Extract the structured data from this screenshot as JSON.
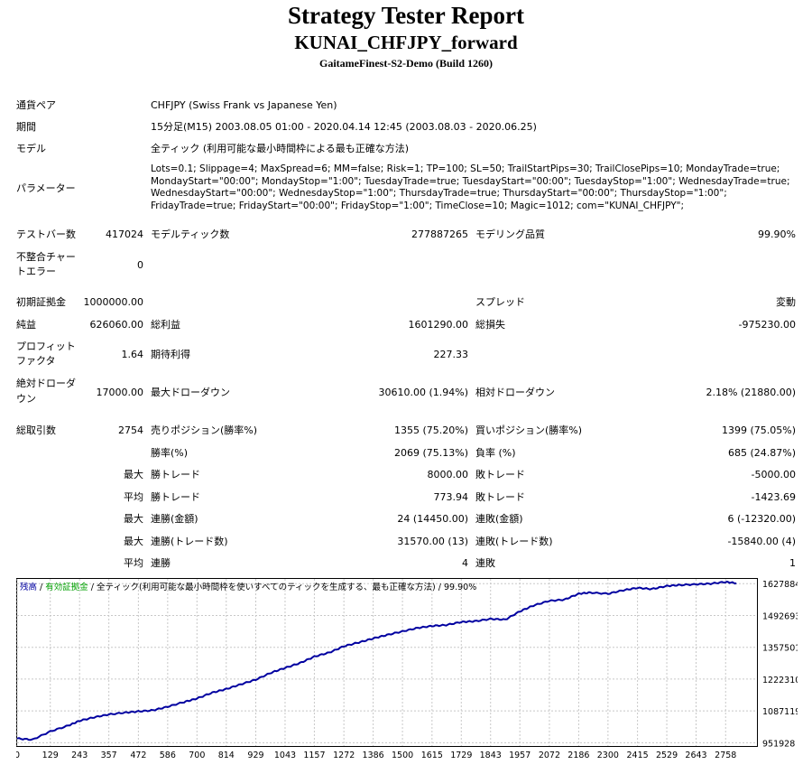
{
  "header": {
    "title": "Strategy Tester Report",
    "ea_name": "KUNAI_CHFJPY_forward",
    "server": "GaitameFinest-S2-Demo (Build 1260)"
  },
  "info": {
    "symbol_label": "通貨ペア",
    "symbol_value": "CHFJPY (Swiss Frank vs Japanese Yen)",
    "period_label": "期間",
    "period_value": "15分足(M15) 2003.08.05 01:00 - 2020.04.14 12:45 (2003.08.03 - 2020.06.25)",
    "model_label": "モデル",
    "model_value": "全ティック (利用可能な最小時間枠による最も正確な方法)",
    "params_label": "パラメーター",
    "params_value": "Lots=0.1; Slippage=4; MaxSpread=6; MM=false; Risk=1; TP=100; SL=50; TrailStartPips=30; TrailClosePips=10; MondayTrade=true; MondayStart=\"00:00\"; MondayStop=\"1:00\"; TuesdayTrade=true; TuesdayStart=\"00:00\"; TuesdayStop=\"1:00\"; WednesdayTrade=true; WednesdayStart=\"00:00\"; WednesdayStop=\"1:00\"; ThursdayTrade=true; ThursdayStart=\"00:00\"; ThursdayStop=\"1:00\"; FridayTrade=true; FridayStart=\"00:00\"; FridayStop=\"1:00\"; TimeClose=10; Magic=1012; com=\"KUNAI_CHFJPY\";"
  },
  "stats": {
    "bars_label": "テストバー数",
    "bars_value": "417024",
    "ticks_label": "モデルティック数",
    "ticks_value": "277887265",
    "quality_label": "モデリング品質",
    "quality_value": "99.90%",
    "mismatch_label_1": "不整合チャー",
    "mismatch_label_2": "トエラー",
    "mismatch_value": "0",
    "deposit_label": "初期証拠金",
    "deposit_value": "1000000.00",
    "spread_label": "スプレッド",
    "spread_value": "変動",
    "net_label": "純益",
    "net_value": "626060.00",
    "gross_profit_label": "総利益",
    "gross_profit_value": "1601290.00",
    "gross_loss_label": "総損失",
    "gross_loss_value": "-975230.00",
    "pf_label_1": "プロフィット",
    "pf_label_2": "ファクタ",
    "pf_value": "1.64",
    "expected_label": "期待利得",
    "expected_value": "227.33",
    "abs_dd_label_1": "絶対ドローダ",
    "abs_dd_label_2": "ウン",
    "abs_dd_value": "17000.00",
    "max_dd_label": "最大ドローダウン",
    "max_dd_value": "30610.00 (1.94%)",
    "rel_dd_label": "相対ドローダウン",
    "rel_dd_value": "2.18% (21880.00)",
    "trades_label": "総取引数",
    "trades_value": "2754",
    "short_label": "売りポジション(勝率%)",
    "short_value": "1355 (75.20%)",
    "long_label": "買いポジション(勝率%)",
    "long_value": "1399 (75.05%)",
    "win_label": "勝率(%)",
    "win_value": "2069 (75.13%)",
    "loss_label": "負率 (%)",
    "loss_value": "685 (24.87%)",
    "max": "最大",
    "avg": "平均",
    "largest_profit_label": "勝トレード",
    "largest_profit_value": "8000.00",
    "largest_loss_label": "敗トレード",
    "largest_loss_value": "-5000.00",
    "avg_profit_label": "勝トレード",
    "avg_profit_value": "773.94",
    "avg_loss_label": "敗トレード",
    "avg_loss_value": "-1423.69",
    "max_consec_wins_label": "連勝(金額)",
    "max_consec_wins_value": "24 (14450.00)",
    "max_consec_losses_label": "連敗(金額)",
    "max_consec_losses_value": "6 (-12320.00)",
    "max_consec_profit_label": "連勝(トレード数)",
    "max_consec_profit_value": "31570.00 (13)",
    "max_consec_loss_label": "連敗(トレード数)",
    "max_consec_loss_value": "-15840.00 (4)",
    "avg_consec_wins_label": "連勝",
    "avg_consec_wins_value": "4",
    "avg_consec_losses_label": "連敗",
    "avg_consec_losses_value": "1"
  },
  "chart_data": {
    "type": "line",
    "legend": {
      "balance": "残高",
      "sep1": " / ",
      "equity": "有効証拠金",
      "sep2": " / ",
      "model": "全ティック(利用可能な最小時間枠を使いすべてのティックを生成する、最も正確な方法)",
      "sep3": " / ",
      "quality": "99.90%"
    },
    "colors": {
      "balance": "#0000a0",
      "equity": "#00a000",
      "model": "#000000"
    },
    "x_ticks": [
      0,
      129,
      243,
      357,
      472,
      586,
      700,
      814,
      929,
      1043,
      1157,
      1272,
      1386,
      1500,
      1615,
      1729,
      1843,
      1957,
      2072,
      2186,
      2300,
      2415,
      2529,
      2643,
      2758
    ],
    "y_ticks": [
      951928,
      1087119,
      1222310,
      1357501,
      1492693,
      1627884
    ],
    "xlim": [
      0,
      2880
    ],
    "ylim": [
      938000,
      1648000
    ],
    "series": [
      {
        "values": [
          [
            0,
            970000
          ],
          [
            60,
            965000
          ],
          [
            129,
            1000000
          ],
          [
            200,
            1025000
          ],
          [
            243,
            1045000
          ],
          [
            300,
            1060000
          ],
          [
            357,
            1072000
          ],
          [
            420,
            1080000
          ],
          [
            472,
            1085000
          ],
          [
            530,
            1090000
          ],
          [
            586,
            1105000
          ],
          [
            650,
            1125000
          ],
          [
            700,
            1140000
          ],
          [
            760,
            1165000
          ],
          [
            814,
            1180000
          ],
          [
            870,
            1200000
          ],
          [
            929,
            1220000
          ],
          [
            990,
            1250000
          ],
          [
            1043,
            1270000
          ],
          [
            1100,
            1290000
          ],
          [
            1157,
            1318000
          ],
          [
            1215,
            1335000
          ],
          [
            1272,
            1362000
          ],
          [
            1330,
            1378000
          ],
          [
            1386,
            1395000
          ],
          [
            1440,
            1410000
          ],
          [
            1500,
            1425000
          ],
          [
            1560,
            1440000
          ],
          [
            1615,
            1448000
          ],
          [
            1670,
            1452000
          ],
          [
            1729,
            1465000
          ],
          [
            1780,
            1468000
          ],
          [
            1843,
            1478000
          ],
          [
            1900,
            1475000
          ],
          [
            1957,
            1510000
          ],
          [
            2010,
            1535000
          ],
          [
            2072,
            1555000
          ],
          [
            2130,
            1560000
          ],
          [
            2186,
            1585000
          ],
          [
            2230,
            1590000
          ],
          [
            2300,
            1585000
          ],
          [
            2360,
            1600000
          ],
          [
            2415,
            1610000
          ],
          [
            2470,
            1605000
          ],
          [
            2529,
            1618000
          ],
          [
            2580,
            1622000
          ],
          [
            2643,
            1625000
          ],
          [
            2700,
            1628000
          ],
          [
            2758,
            1635000
          ],
          [
            2800,
            1630000
          ]
        ]
      }
    ]
  }
}
